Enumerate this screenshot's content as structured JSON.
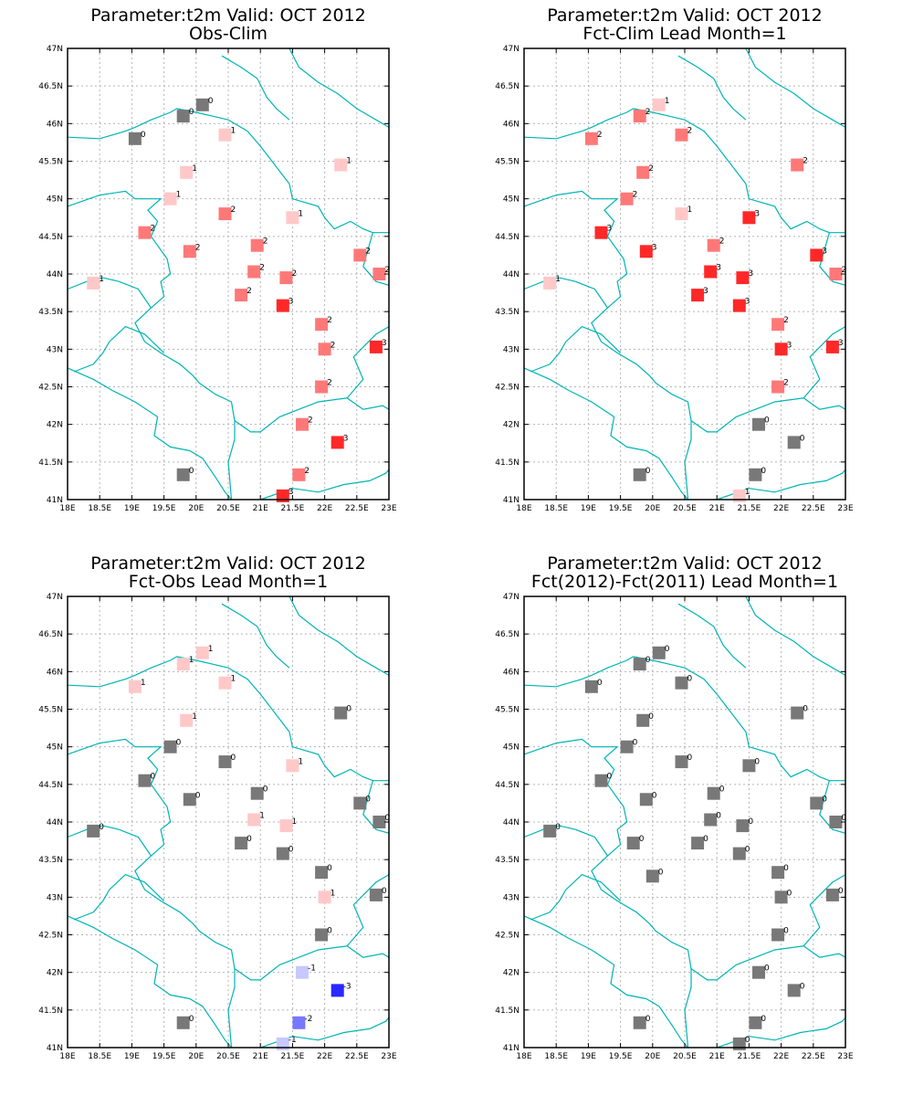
{
  "panels": [
    {
      "id": "obs-clim",
      "title1": "Parameter:t2m Valid: OCT 2012",
      "title2": "Obs-Clim"
    },
    {
      "id": "fct-clim",
      "title1": "Parameter:t2m Valid: OCT 2012",
      "title2": "Fct-Clim Lead Month=1"
    },
    {
      "id": "fct-obs",
      "title1": "Parameter:t2m Valid: OCT 2012",
      "title2": "Fct-Obs Lead Month=1"
    },
    {
      "id": "fct-diff",
      "title1": "Parameter:t2m Valid: OCT 2012",
      "title2": "Fct(2012)-Fct(2011) Lead Month=1"
    }
  ],
  "map": {
    "lon_range": [
      18,
      23
    ],
    "lat_range": [
      41,
      47
    ],
    "x_ticks": [
      "18E",
      "18.5E",
      "19E",
      "19.5E",
      "20E",
      "20.5E",
      "21E",
      "21.5E",
      "22E",
      "22.5E",
      "23E"
    ],
    "y_ticks": [
      "41N",
      "41.5N",
      "42N",
      "42.5N",
      "43N",
      "43.5N",
      "44N",
      "44.5N",
      "45N",
      "45.5N",
      "46N",
      "46.5N",
      "47N"
    ],
    "grid": true,
    "border_color": "#00b4b4"
  },
  "colors": {
    "-3": "#2828ff",
    "-2": "#7878ff",
    "-1": "#c8c8ff",
    "0": "#787878",
    "1": "#ffc8c8",
    "2": "#ff7878",
    "3": "#ff2828"
  },
  "chart_data": [
    {
      "type": "scatter",
      "title": "Obs-Clim",
      "points": [
        {
          "lon": 20.1,
          "lat": 46.25,
          "v": 0
        },
        {
          "lon": 19.8,
          "lat": 46.1,
          "v": 0
        },
        {
          "lon": 19.05,
          "lat": 45.8,
          "v": 0
        },
        {
          "lon": 20.45,
          "lat": 45.85,
          "v": 1
        },
        {
          "lon": 19.85,
          "lat": 45.35,
          "v": 1
        },
        {
          "lon": 22.25,
          "lat": 45.45,
          "v": 1
        },
        {
          "lon": 19.6,
          "lat": 45.0,
          "v": 1
        },
        {
          "lon": 20.45,
          "lat": 44.8,
          "v": 2
        },
        {
          "lon": 21.5,
          "lat": 44.75,
          "v": 1
        },
        {
          "lon": 19.2,
          "lat": 44.55,
          "v": 2
        },
        {
          "lon": 19.9,
          "lat": 44.3,
          "v": 2
        },
        {
          "lon": 20.95,
          "lat": 44.38,
          "v": 2
        },
        {
          "lon": 22.55,
          "lat": 44.25,
          "v": 2
        },
        {
          "lon": 18.4,
          "lat": 43.88,
          "v": 1
        },
        {
          "lon": 20.9,
          "lat": 44.03,
          "v": 2
        },
        {
          "lon": 21.4,
          "lat": 43.95,
          "v": 2
        },
        {
          "lon": 22.85,
          "lat": 44.0,
          "v": 2
        },
        {
          "lon": 20.7,
          "lat": 43.72,
          "v": 2
        },
        {
          "lon": 21.35,
          "lat": 43.58,
          "v": 3
        },
        {
          "lon": 21.95,
          "lat": 43.33,
          "v": 2
        },
        {
          "lon": 22.0,
          "lat": 43.0,
          "v": 2
        },
        {
          "lon": 22.8,
          "lat": 43.03,
          "v": 3
        },
        {
          "lon": 21.95,
          "lat": 42.5,
          "v": 2
        },
        {
          "lon": 21.65,
          "lat": 42.0,
          "v": 2
        },
        {
          "lon": 22.2,
          "lat": 41.76,
          "v": 3
        },
        {
          "lon": 19.8,
          "lat": 41.33,
          "v": 0
        },
        {
          "lon": 21.6,
          "lat": 41.33,
          "v": 2
        },
        {
          "lon": 21.35,
          "lat": 41.05,
          "v": 3
        }
      ]
    },
    {
      "type": "scatter",
      "title": "Fct-Clim Lead Month=1",
      "points": [
        {
          "lon": 20.1,
          "lat": 46.25,
          "v": 1
        },
        {
          "lon": 19.8,
          "lat": 46.1,
          "v": 2
        },
        {
          "lon": 19.05,
          "lat": 45.8,
          "v": 2
        },
        {
          "lon": 20.45,
          "lat": 45.85,
          "v": 2
        },
        {
          "lon": 19.85,
          "lat": 45.35,
          "v": 2
        },
        {
          "lon": 22.25,
          "lat": 45.45,
          "v": 2
        },
        {
          "lon": 19.6,
          "lat": 45.0,
          "v": 2
        },
        {
          "lon": 20.45,
          "lat": 44.8,
          "v": 1
        },
        {
          "lon": 21.5,
          "lat": 44.75,
          "v": 3
        },
        {
          "lon": 19.2,
          "lat": 44.55,
          "v": 3
        },
        {
          "lon": 19.9,
          "lat": 44.3,
          "v": 3
        },
        {
          "lon": 20.95,
          "lat": 44.38,
          "v": 2
        },
        {
          "lon": 22.55,
          "lat": 44.25,
          "v": 3
        },
        {
          "lon": 18.4,
          "lat": 43.88,
          "v": 1
        },
        {
          "lon": 20.9,
          "lat": 44.03,
          "v": 3
        },
        {
          "lon": 21.4,
          "lat": 43.95,
          "v": 3
        },
        {
          "lon": 22.85,
          "lat": 44.0,
          "v": 2
        },
        {
          "lon": 20.7,
          "lat": 43.72,
          "v": 3
        },
        {
          "lon": 21.35,
          "lat": 43.58,
          "v": 3
        },
        {
          "lon": 21.95,
          "lat": 43.33,
          "v": 2
        },
        {
          "lon": 22.0,
          "lat": 43.0,
          "v": 3
        },
        {
          "lon": 22.8,
          "lat": 43.03,
          "v": 3
        },
        {
          "lon": 21.95,
          "lat": 42.5,
          "v": 2
        },
        {
          "lon": 21.65,
          "lat": 42.0,
          "v": 0
        },
        {
          "lon": 22.2,
          "lat": 41.76,
          "v": 0
        },
        {
          "lon": 19.8,
          "lat": 41.33,
          "v": 0
        },
        {
          "lon": 21.6,
          "lat": 41.33,
          "v": 0
        },
        {
          "lon": 21.35,
          "lat": 41.05,
          "v": 1
        }
      ]
    },
    {
      "type": "scatter",
      "title": "Fct-Obs Lead Month=1",
      "points": [
        {
          "lon": 20.1,
          "lat": 46.25,
          "v": 1
        },
        {
          "lon": 19.8,
          "lat": 46.1,
          "v": 1
        },
        {
          "lon": 19.05,
          "lat": 45.8,
          "v": 1
        },
        {
          "lon": 20.45,
          "lat": 45.85,
          "v": 1
        },
        {
          "lon": 19.85,
          "lat": 45.35,
          "v": 1
        },
        {
          "lon": 22.25,
          "lat": 45.45,
          "v": 0
        },
        {
          "lon": 19.6,
          "lat": 45.0,
          "v": 0
        },
        {
          "lon": 20.45,
          "lat": 44.8,
          "v": 0
        },
        {
          "lon": 21.5,
          "lat": 44.75,
          "v": 1
        },
        {
          "lon": 19.2,
          "lat": 44.55,
          "v": 0
        },
        {
          "lon": 19.9,
          "lat": 44.3,
          "v": 0
        },
        {
          "lon": 20.95,
          "lat": 44.38,
          "v": 0
        },
        {
          "lon": 22.55,
          "lat": 44.25,
          "v": 0
        },
        {
          "lon": 18.4,
          "lat": 43.88,
          "v": 0
        },
        {
          "lon": 20.9,
          "lat": 44.03,
          "v": 1
        },
        {
          "lon": 21.4,
          "lat": 43.95,
          "v": 1
        },
        {
          "lon": 22.85,
          "lat": 44.0,
          "v": 0
        },
        {
          "lon": 20.7,
          "lat": 43.72,
          "v": 0
        },
        {
          "lon": 21.35,
          "lat": 43.58,
          "v": 0
        },
        {
          "lon": 21.95,
          "lat": 43.33,
          "v": 0
        },
        {
          "lon": 22.0,
          "lat": 43.0,
          "v": 1
        },
        {
          "lon": 22.8,
          "lat": 43.03,
          "v": 0
        },
        {
          "lon": 21.95,
          "lat": 42.5,
          "v": 0
        },
        {
          "lon": 21.65,
          "lat": 42.0,
          "v": -1
        },
        {
          "lon": 22.2,
          "lat": 41.76,
          "v": -3
        },
        {
          "lon": 19.8,
          "lat": 41.33,
          "v": 0
        },
        {
          "lon": 21.6,
          "lat": 41.33,
          "v": -2
        },
        {
          "lon": 21.35,
          "lat": 41.05,
          "v": -1
        }
      ]
    },
    {
      "type": "scatter",
      "title": "Fct(2012)-Fct(2011) Lead Month=1",
      "points": [
        {
          "lon": 20.1,
          "lat": 46.25,
          "v": 0
        },
        {
          "lon": 19.8,
          "lat": 46.1,
          "v": 0
        },
        {
          "lon": 19.05,
          "lat": 45.8,
          "v": 0
        },
        {
          "lon": 20.45,
          "lat": 45.85,
          "v": 0
        },
        {
          "lon": 19.85,
          "lat": 45.35,
          "v": 0
        },
        {
          "lon": 22.25,
          "lat": 45.45,
          "v": 0
        },
        {
          "lon": 19.6,
          "lat": 45.0,
          "v": 0
        },
        {
          "lon": 20.45,
          "lat": 44.8,
          "v": 0
        },
        {
          "lon": 21.5,
          "lat": 44.75,
          "v": 0
        },
        {
          "lon": 19.2,
          "lat": 44.55,
          "v": 0
        },
        {
          "lon": 19.9,
          "lat": 44.3,
          "v": 0
        },
        {
          "lon": 20.95,
          "lat": 44.38,
          "v": 0
        },
        {
          "lon": 22.55,
          "lat": 44.25,
          "v": 0
        },
        {
          "lon": 18.4,
          "lat": 43.88,
          "v": 0
        },
        {
          "lon": 20.9,
          "lat": 44.03,
          "v": 0
        },
        {
          "lon": 21.4,
          "lat": 43.95,
          "v": 0
        },
        {
          "lon": 22.85,
          "lat": 44.0,
          "v": 0
        },
        {
          "lon": 20.7,
          "lat": 43.72,
          "v": 0
        },
        {
          "lon": 19.7,
          "lat": 43.72,
          "v": 0
        },
        {
          "lon": 21.35,
          "lat": 43.58,
          "v": 0
        },
        {
          "lon": 21.95,
          "lat": 43.33,
          "v": 0
        },
        {
          "lon": 20.0,
          "lat": 43.28,
          "v": 0
        },
        {
          "lon": 22.0,
          "lat": 43.0,
          "v": 0
        },
        {
          "lon": 22.8,
          "lat": 43.03,
          "v": 0
        },
        {
          "lon": 21.95,
          "lat": 42.5,
          "v": 0
        },
        {
          "lon": 21.65,
          "lat": 42.0,
          "v": 0
        },
        {
          "lon": 22.2,
          "lat": 41.76,
          "v": 0
        },
        {
          "lon": 19.8,
          "lat": 41.33,
          "v": 0
        },
        {
          "lon": 21.6,
          "lat": 41.33,
          "v": 0
        },
        {
          "lon": 21.35,
          "lat": 41.05,
          "v": 0
        }
      ]
    }
  ]
}
